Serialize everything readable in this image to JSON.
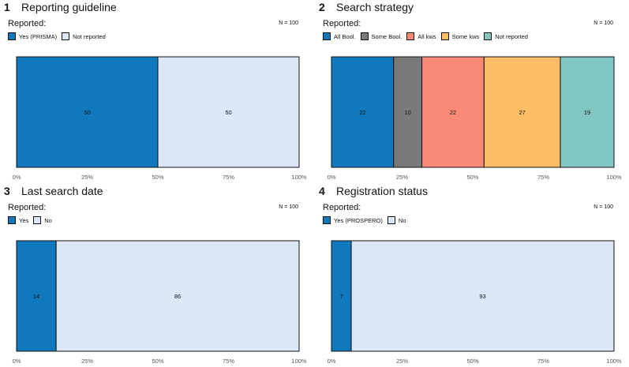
{
  "chart_data": [
    {
      "type": "bar",
      "orientation": "horizontal",
      "stacked": true,
      "panel_number": "1",
      "title": "Reporting guideline",
      "legend_title": "Reported:",
      "n_label": "N = 100",
      "series": [
        {
          "name": "Yes (PRISMA)",
          "value": 50,
          "color": "#1178bd"
        },
        {
          "name": "Not reported",
          "value": 50,
          "color": "#dce7f7"
        }
      ],
      "x_ticks": [
        "0%",
        "25%",
        "50%",
        "75%",
        "100%"
      ],
      "xlim": [
        0,
        100
      ]
    },
    {
      "type": "bar",
      "orientation": "horizontal",
      "stacked": true,
      "panel_number": "2",
      "title": "Search strategy",
      "legend_title": "Reported:",
      "n_label": "N = 100",
      "series": [
        {
          "name": "All Bool.",
          "value": 22,
          "color": "#1178bd"
        },
        {
          "name": "Some Bool.",
          "value": 10,
          "color": "#7a7a7a"
        },
        {
          "name": "All kws",
          "value": 22,
          "color": "#fa8a76"
        },
        {
          "name": "Some kws",
          "value": 27,
          "color": "#fdbd66"
        },
        {
          "name": "Not reported",
          "value": 19,
          "color": "#80c7c1"
        }
      ],
      "x_ticks": [
        "0%",
        "25%",
        "50%",
        "75%",
        "100%"
      ],
      "xlim": [
        0,
        100
      ]
    },
    {
      "type": "bar",
      "orientation": "horizontal",
      "stacked": true,
      "panel_number": "3",
      "title": "Last search date",
      "legend_title": "Reported:",
      "n_label": "N = 100",
      "series": [
        {
          "name": "Yes",
          "value": 14,
          "color": "#1178bd"
        },
        {
          "name": "No",
          "value": 86,
          "color": "#dce7f7"
        }
      ],
      "x_ticks": [
        "0%",
        "25%",
        "50%",
        "75%",
        "100%"
      ],
      "xlim": [
        0,
        100
      ]
    },
    {
      "type": "bar",
      "orientation": "horizontal",
      "stacked": true,
      "panel_number": "4",
      "title": "Registration status",
      "legend_title": "Reported:",
      "n_label": "N = 100",
      "series": [
        {
          "name": "Yes (PROSPERO)",
          "value": 7,
          "color": "#1178bd"
        },
        {
          "name": "No",
          "value": 93,
          "color": "#dce7f7"
        }
      ],
      "x_ticks": [
        "0%",
        "25%",
        "50%",
        "75%",
        "100%"
      ],
      "xlim": [
        0,
        100
      ]
    }
  ]
}
